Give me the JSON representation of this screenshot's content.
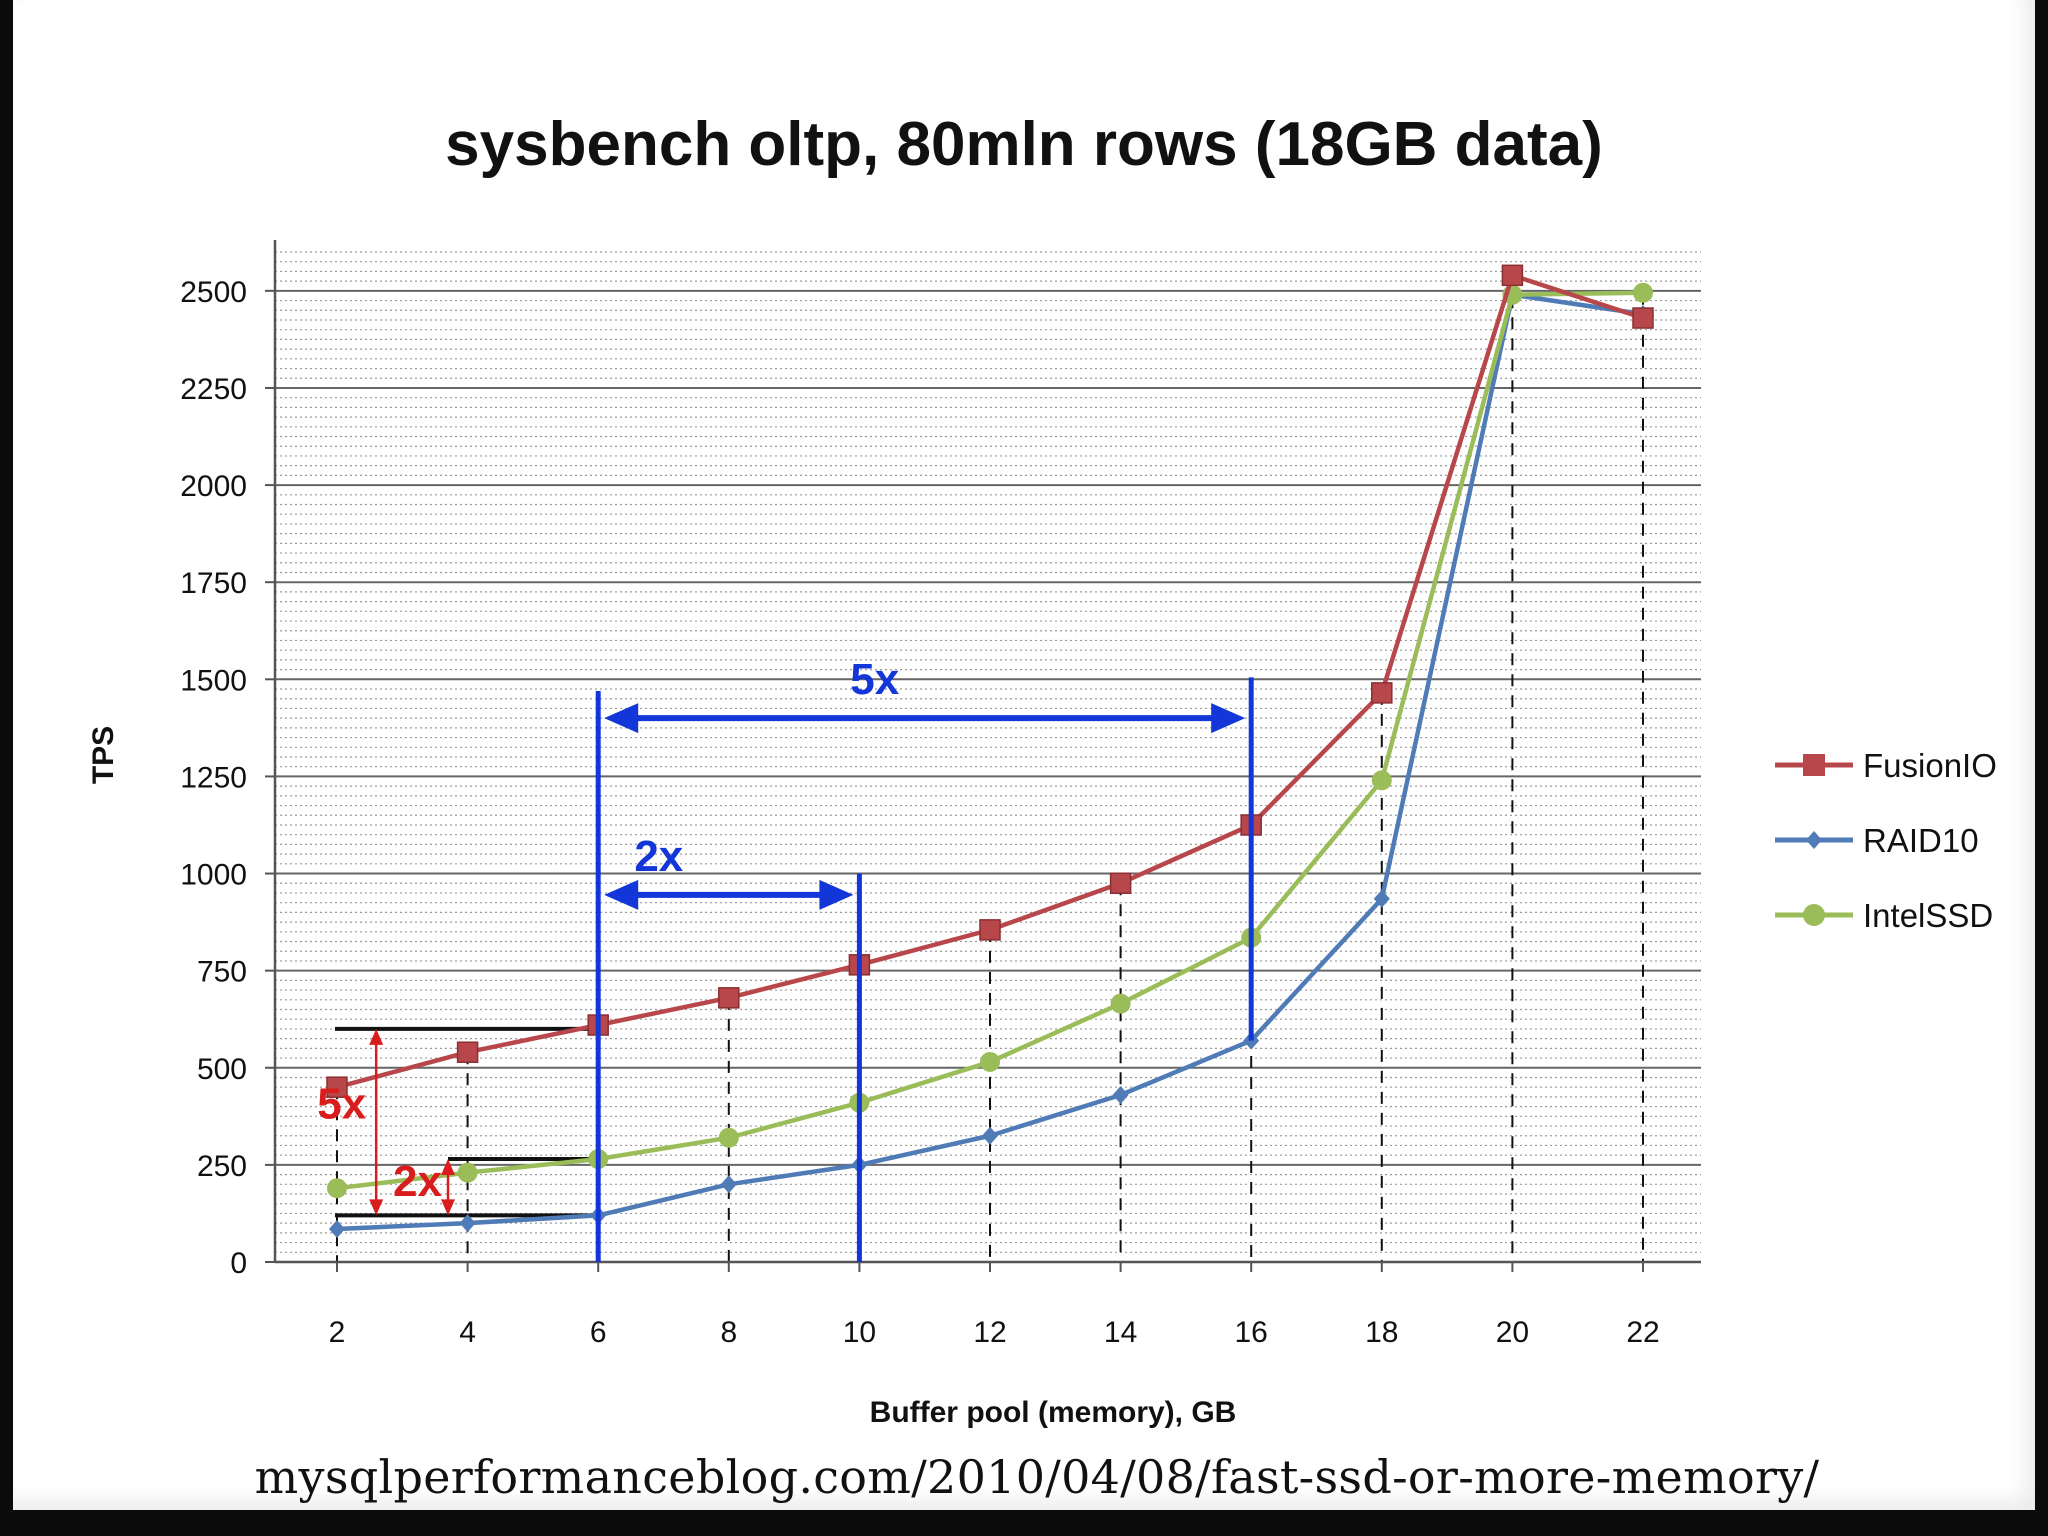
{
  "source_caption": "mysqlperformanceblog.com/2010/04/08/fast-ssd-or-more-memory/",
  "colors": {
    "FusionIO": "#b8474b",
    "RAID10": "#4f7bb7",
    "IntelSSD": "#9bbd59",
    "annotation_red": "#d91d1d",
    "annotation_blue": "#1336d8"
  },
  "chart_data": {
    "type": "line",
    "title": "sysbench oltp, 80mln rows (18GB data)",
    "xlabel": "Buffer pool (memory), GB",
    "ylabel": "TPS",
    "x": [
      2,
      4,
      6,
      8,
      10,
      12,
      14,
      16,
      18,
      20,
      22
    ],
    "ylim": [
      0,
      2600
    ],
    "yticks": [
      0,
      250,
      500,
      750,
      1000,
      1250,
      1500,
      1750,
      2000,
      2250,
      2500
    ],
    "grid": true,
    "legend_position": "right",
    "series": [
      {
        "name": "FusionIO",
        "marker": "square",
        "values": [
          450,
          540,
          610,
          680,
          765,
          855,
          975,
          1125,
          1465,
          2540,
          2430
        ]
      },
      {
        "name": "RAID10",
        "marker": "diamond",
        "values": [
          85,
          100,
          120,
          200,
          250,
          325,
          430,
          570,
          935,
          2490,
          2440
        ]
      },
      {
        "name": "IntelSSD",
        "marker": "circle",
        "values": [
          190,
          230,
          265,
          320,
          410,
          515,
          665,
          835,
          1240,
          2490,
          2495
        ]
      }
    ],
    "annotations": [
      {
        "text": "5x",
        "color": "red",
        "type": "vertical-arrow",
        "x": 2.6,
        "from": 120,
        "to": 600
      },
      {
        "text": "2x",
        "color": "red",
        "type": "vertical-arrow",
        "x": 3.7,
        "from": 120,
        "to": 265
      },
      {
        "text": "5x",
        "color": "blue",
        "type": "horizontal-arrow",
        "y": 1400,
        "from": 6,
        "to": 16
      },
      {
        "text": "2x",
        "color": "blue",
        "type": "horizontal-arrow",
        "y": 945,
        "from": 6,
        "to": 10
      }
    ]
  }
}
